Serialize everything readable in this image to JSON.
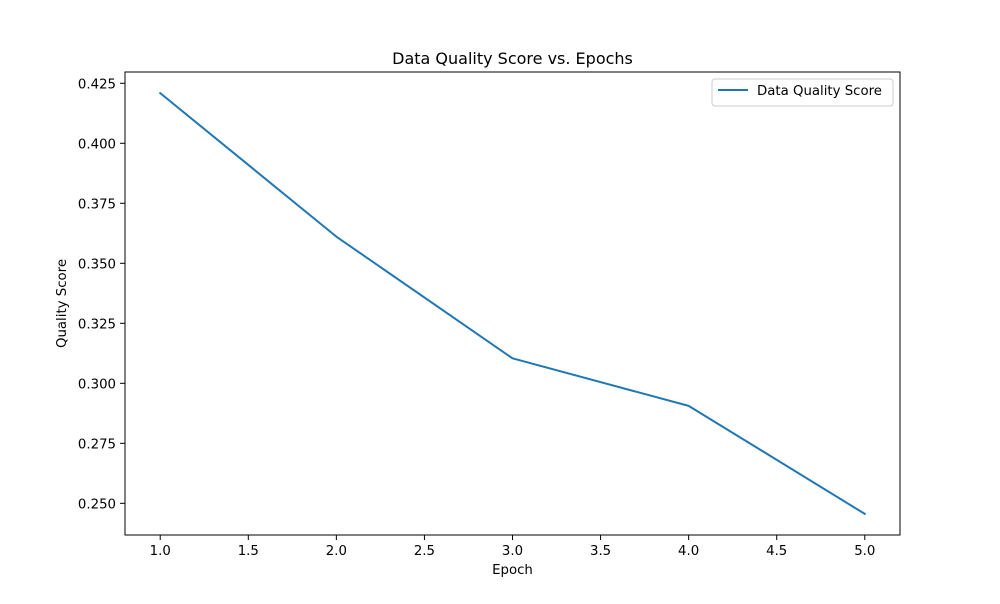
{
  "chart_data": {
    "type": "line",
    "title": "Data Quality Score vs. Epochs",
    "xlabel": "Epoch",
    "ylabel": "Quality Score",
    "x": [
      1,
      2,
      3,
      4,
      5
    ],
    "series": [
      {
        "name": "Data Quality Score",
        "values": [
          0.4209,
          0.3611,
          0.3104,
          0.2906,
          0.2456
        ],
        "color": "#1f77b4"
      }
    ],
    "xlim": [
      0.8,
      5.2
    ],
    "ylim": [
      0.2368,
      0.4297
    ],
    "xticks": [
      1.0,
      1.5,
      2.0,
      2.5,
      3.0,
      3.5,
      4.0,
      4.5,
      5.0
    ],
    "xtick_labels": [
      "1.0",
      "1.5",
      "2.0",
      "2.5",
      "3.0",
      "3.5",
      "4.0",
      "4.5",
      "5.0"
    ],
    "yticks": [
      0.25,
      0.275,
      0.3,
      0.325,
      0.35,
      0.375,
      0.4,
      0.425
    ],
    "ytick_labels": [
      "0.250",
      "0.275",
      "0.300",
      "0.325",
      "0.350",
      "0.375",
      "0.400",
      "0.425"
    ],
    "grid": false,
    "legend_position": "top-right"
  }
}
